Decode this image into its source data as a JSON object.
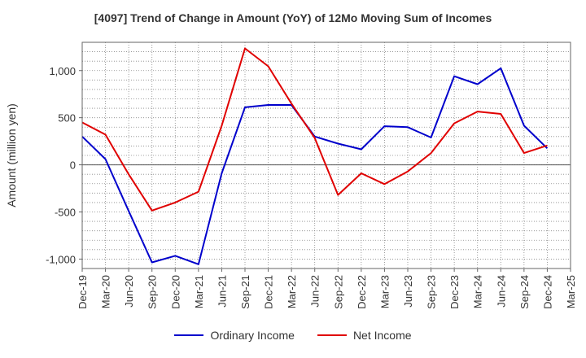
{
  "chart_data": {
    "type": "line",
    "title": "[4097]  Trend of Change in Amount (YoY) of 12Mo Moving Sum of Incomes",
    "xlabel": "",
    "ylabel": "Amount (million yen)",
    "ylim": [
      -1100,
      1300
    ],
    "yticks": [
      -1000,
      -500,
      0,
      500,
      1000
    ],
    "ytick_labels": [
      "-1,000",
      "-500",
      "0",
      "500",
      "1,000"
    ],
    "categories": [
      "Dec-19",
      "Mar-20",
      "Jun-20",
      "Sep-20",
      "Dec-20",
      "Mar-21",
      "Jun-21",
      "Sep-21",
      "Dec-21",
      "Mar-22",
      "Jun-22",
      "Sep-22",
      "Dec-22",
      "Mar-23",
      "Jun-23",
      "Sep-23",
      "Dec-23",
      "Mar-24",
      "Jun-24",
      "Sep-24",
      "Dec-24",
      "Mar-25"
    ],
    "grid": true,
    "legend_position": "bottom",
    "series": [
      {
        "name": "Ordinary Income",
        "color": "#0000cc",
        "values": [
          300,
          60,
          -490,
          -1035,
          -965,
          -1055,
          -90,
          610,
          635,
          635,
          300,
          225,
          165,
          410,
          400,
          290,
          940,
          855,
          1025,
          415,
          175,
          null
        ]
      },
      {
        "name": "Net Income",
        "color": "#e00000",
        "values": [
          450,
          320,
          -100,
          -485,
          -400,
          -285,
          415,
          1235,
          1045,
          650,
          285,
          -320,
          -90,
          -205,
          -70,
          125,
          440,
          565,
          540,
          125,
          205,
          null
        ]
      }
    ]
  }
}
